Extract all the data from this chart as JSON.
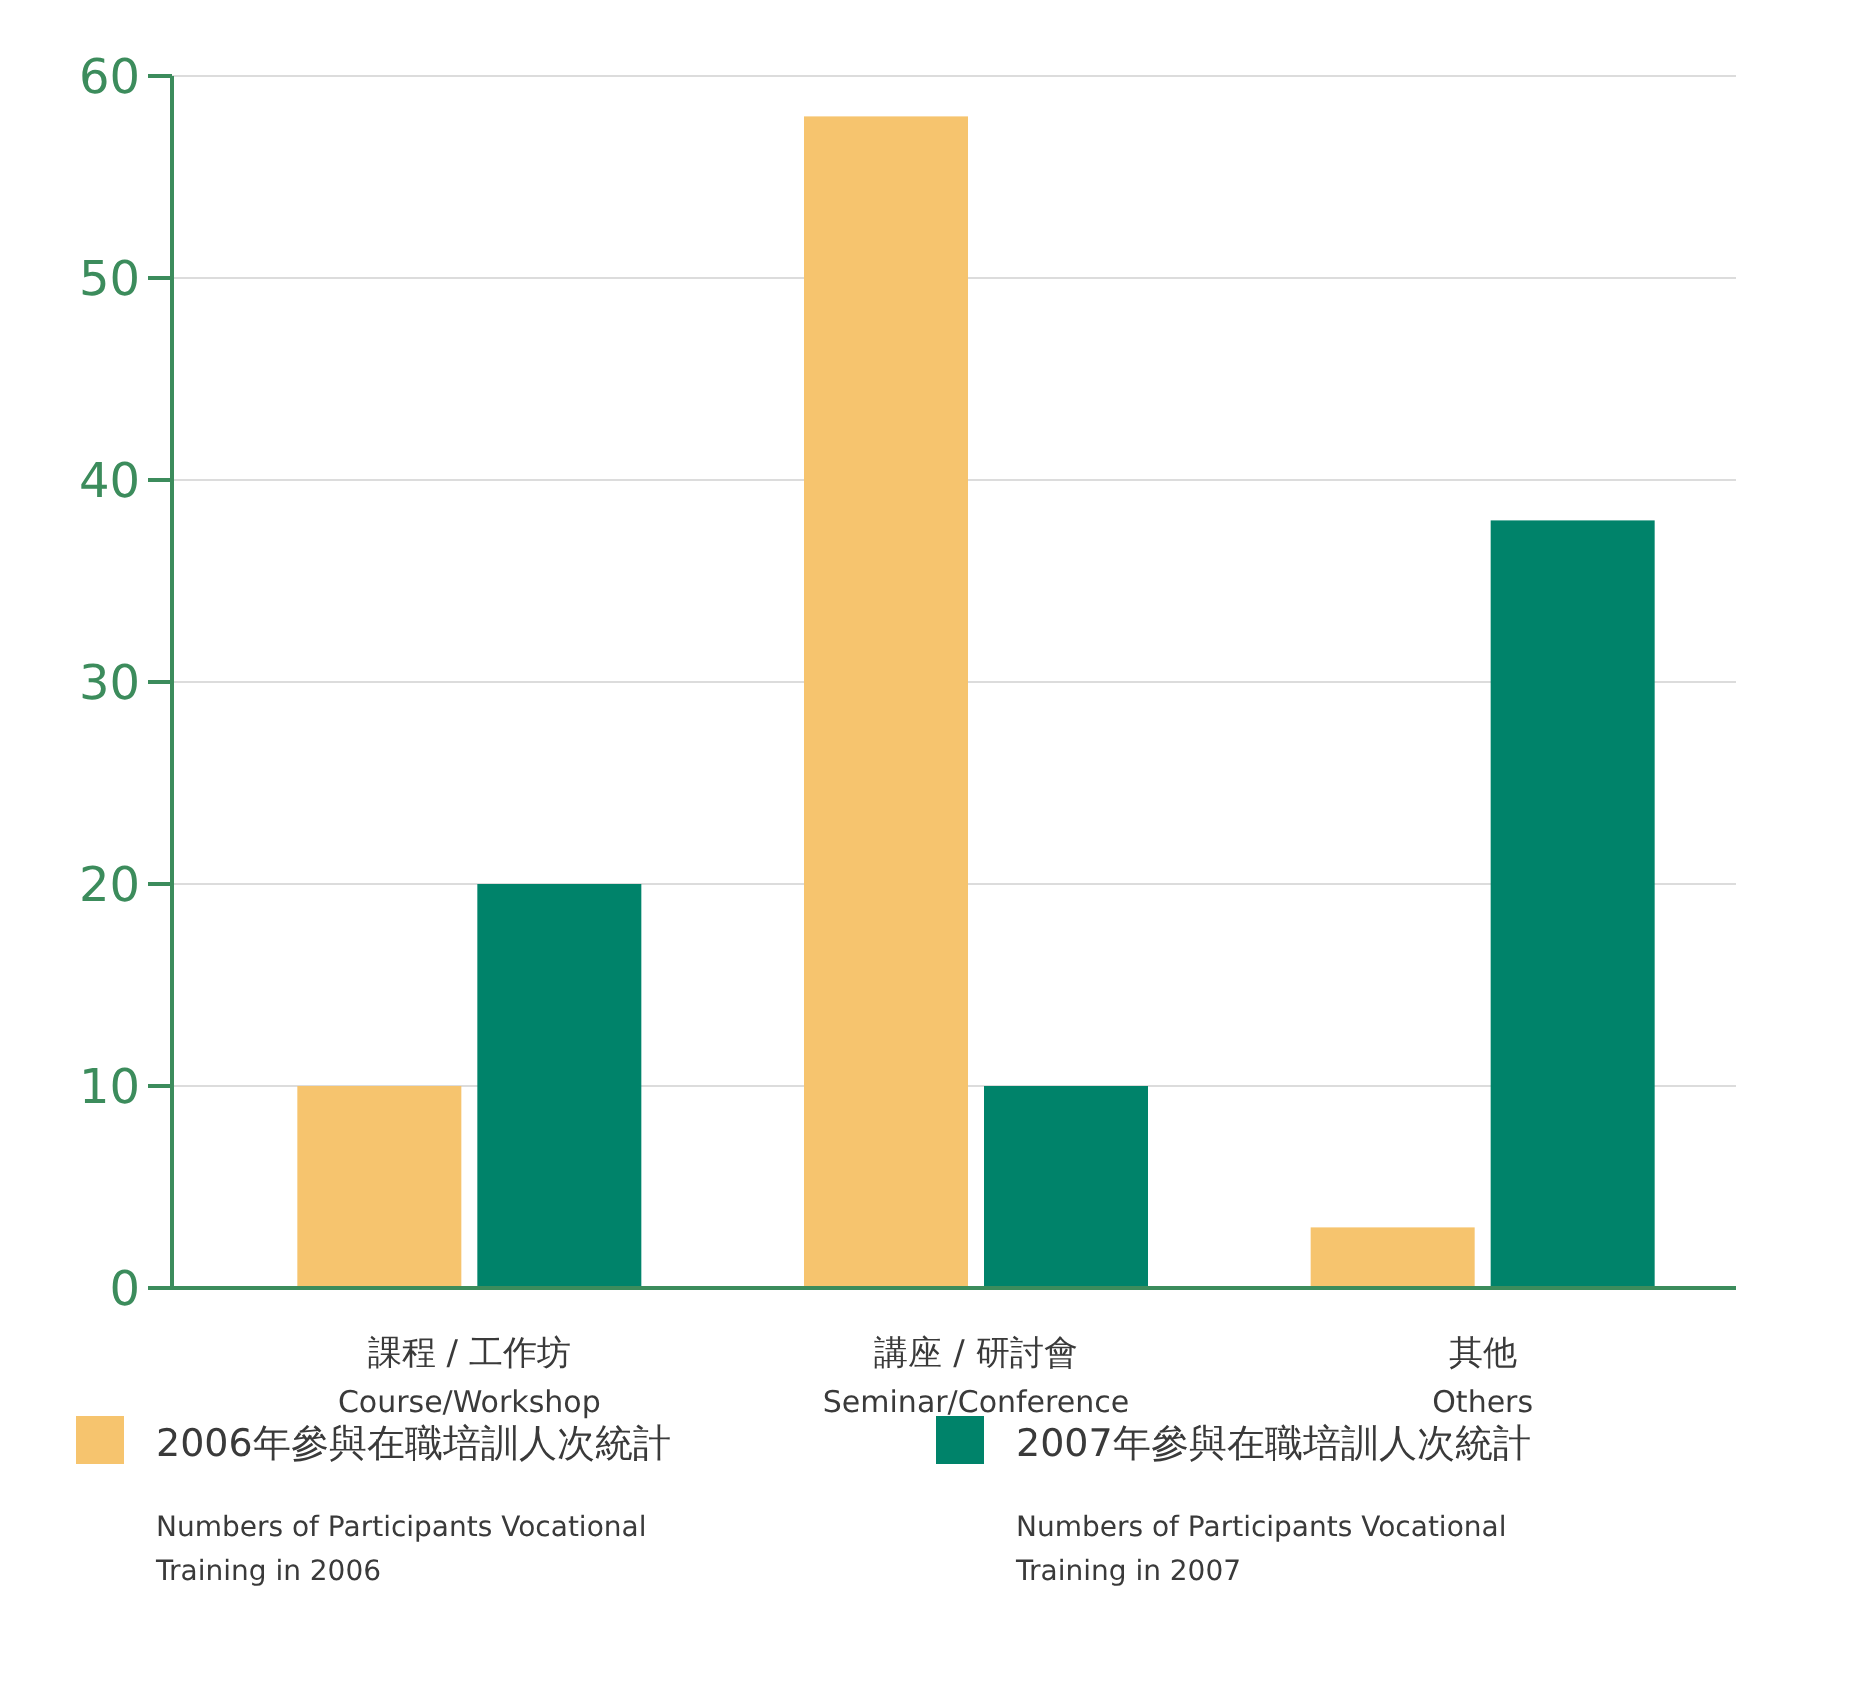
{
  "chart_data": {
    "type": "bar",
    "categories": [
      "課程 / 工作坊\nCourse/Workshop",
      "講座 / 研討會\nSeminar/Conference",
      "其他\nOthers"
    ],
    "series": [
      {
        "name": "2006年參與在職培訓人次統計",
        "color": "#f6c46e",
        "values": [
          10,
          58,
          3
        ]
      },
      {
        "name": "2007年參與在職培訓人次統計",
        "color": "#00836a",
        "values": [
          20,
          10,
          38
        ]
      }
    ],
    "annotations": [
      "Numbers of Participants Vocational Training in 2006",
      "Numbers of Participants Vocational Training in 2007"
    ],
    "ylim": [
      0,
      60
    ],
    "yticks": [
      0,
      10,
      20,
      30,
      40,
      50,
      60
    ],
    "grid": "y",
    "legend": "bottom"
  }
}
